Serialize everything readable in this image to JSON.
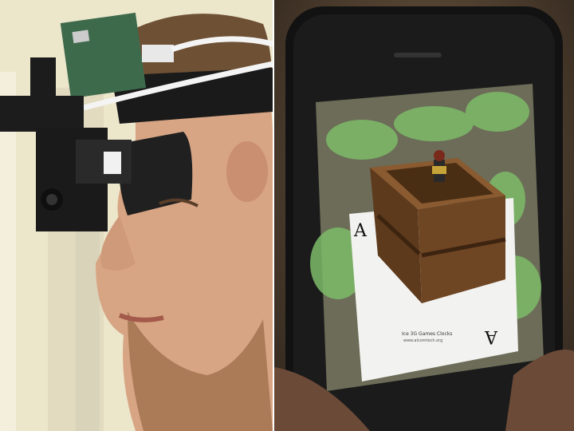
{
  "scene": {
    "left_panel": {
      "subject": "person-wearing-head-mounted-display",
      "colors": {
        "wall": "#ebe5ca",
        "skin": "#d9a888",
        "hair": "#7a5a3c",
        "device": "#1c1c1c",
        "pcb": "#3f6a4a"
      }
    },
    "right_panel": {
      "subject": "handheld-phone-augmented-reality",
      "card_rank": "A",
      "card_text_line1": "Ice 3G Games Clocks",
      "card_text_line2": "www.alcomtech.org",
      "colors": {
        "phone": "#111111",
        "screen_bg": "#6f6f5a",
        "crate": "#6b4322",
        "leaves": "#7fb86a",
        "card": "#f2f2f0"
      }
    }
  }
}
